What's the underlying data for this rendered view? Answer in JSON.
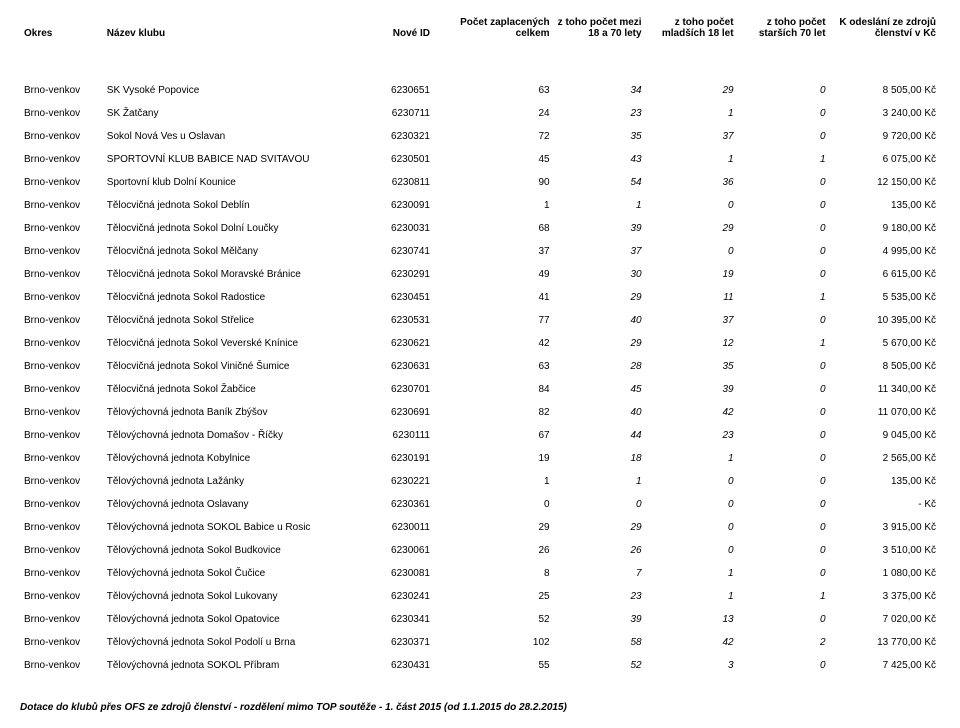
{
  "columns": {
    "okres": "Okres",
    "name": "Název klubu",
    "id": "Nové ID",
    "total": "Počet zaplacených celkem",
    "mid": "z toho počet mezi 18 a 70 lety",
    "young": "z toho počet mladších 18 let",
    "old": "z toho počet starších 70 let",
    "amount": "K odeslání ze zdrojů členství v Kč"
  },
  "rows": [
    {
      "okres": "Brno-venkov",
      "name": "SK Vysoké Popovice",
      "id": "6230651",
      "total": "63",
      "mid": "34",
      "young": "29",
      "old": "0",
      "amount": "8 505,00 Kč"
    },
    {
      "okres": "Brno-venkov",
      "name": "SK Žatčany",
      "id": "6230711",
      "total": "24",
      "mid": "23",
      "young": "1",
      "old": "0",
      "amount": "3 240,00 Kč"
    },
    {
      "okres": "Brno-venkov",
      "name": "Sokol Nová Ves u Oslavan",
      "id": "6230321",
      "total": "72",
      "mid": "35",
      "young": "37",
      "old": "0",
      "amount": "9 720,00 Kč"
    },
    {
      "okres": "Brno-venkov",
      "name": "SPORTOVNÍ KLUB BABICE NAD SVITAVOU",
      "id": "6230501",
      "total": "45",
      "mid": "43",
      "young": "1",
      "old": "1",
      "amount": "6 075,00 Kč"
    },
    {
      "okres": "Brno-venkov",
      "name": "Sportovní klub Dolní Kounice",
      "id": "6230811",
      "total": "90",
      "mid": "54",
      "young": "36",
      "old": "0",
      "amount": "12 150,00 Kč"
    },
    {
      "okres": "Brno-venkov",
      "name": "Tělocvičná jednota Sokol Deblín",
      "id": "6230091",
      "total": "1",
      "mid": "1",
      "young": "0",
      "old": "0",
      "amount": "135,00 Kč"
    },
    {
      "okres": "Brno-venkov",
      "name": "Tělocvičná jednota Sokol Dolní Loučky",
      "id": "6230031",
      "total": "68",
      "mid": "39",
      "young": "29",
      "old": "0",
      "amount": "9 180,00 Kč"
    },
    {
      "okres": "Brno-venkov",
      "name": "Tělocvičná jednota Sokol Mělčany",
      "id": "6230741",
      "total": "37",
      "mid": "37",
      "young": "0",
      "old": "0",
      "amount": "4 995,00 Kč"
    },
    {
      "okres": "Brno-venkov",
      "name": "Tělocvičná jednota Sokol Moravské Bránice",
      "id": "6230291",
      "total": "49",
      "mid": "30",
      "young": "19",
      "old": "0",
      "amount": "6 615,00 Kč"
    },
    {
      "okres": "Brno-venkov",
      "name": "Tělocvičná jednota Sokol Radostice",
      "id": "6230451",
      "total": "41",
      "mid": "29",
      "young": "11",
      "old": "1",
      "amount": "5 535,00 Kč"
    },
    {
      "okres": "Brno-venkov",
      "name": "Tělocvičná jednota Sokol Střelice",
      "id": "6230531",
      "total": "77",
      "mid": "40",
      "young": "37",
      "old": "0",
      "amount": "10 395,00 Kč"
    },
    {
      "okres": "Brno-venkov",
      "name": "Tělocvičná jednota Sokol Veverské Knínice",
      "id": "6230621",
      "total": "42",
      "mid": "29",
      "young": "12",
      "old": "1",
      "amount": "5 670,00 Kč"
    },
    {
      "okres": "Brno-venkov",
      "name": "Tělocvičná jednota Sokol Viničné Šumice",
      "id": "6230631",
      "total": "63",
      "mid": "28",
      "young": "35",
      "old": "0",
      "amount": "8 505,00 Kč"
    },
    {
      "okres": "Brno-venkov",
      "name": "Tělocvičná jednota Sokol Žabčice",
      "id": "6230701",
      "total": "84",
      "mid": "45",
      "young": "39",
      "old": "0",
      "amount": "11 340,00 Kč"
    },
    {
      "okres": "Brno-venkov",
      "name": "Tělovýchovná jednota Baník Zbýšov",
      "id": "6230691",
      "total": "82",
      "mid": "40",
      "young": "42",
      "old": "0",
      "amount": "11 070,00 Kč"
    },
    {
      "okres": "Brno-venkov",
      "name": "Tělovýchovná jednota Domašov - Říčky",
      "id": "6230111",
      "total": "67",
      "mid": "44",
      "young": "23",
      "old": "0",
      "amount": "9 045,00 Kč"
    },
    {
      "okres": "Brno-venkov",
      "name": "Tělovýchovná jednota Kobylnice",
      "id": "6230191",
      "total": "19",
      "mid": "18",
      "young": "1",
      "old": "0",
      "amount": "2 565,00 Kč"
    },
    {
      "okres": "Brno-venkov",
      "name": "Tělovýchovná jednota Lažánky",
      "id": "6230221",
      "total": "1",
      "mid": "1",
      "young": "0",
      "old": "0",
      "amount": "135,00 Kč"
    },
    {
      "okres": "Brno-venkov",
      "name": "Tělovýchovná jednota Oslavany",
      "id": "6230361",
      "total": "0",
      "mid": "0",
      "young": "0",
      "old": "0",
      "amount": "-   Kč"
    },
    {
      "okres": "Brno-venkov",
      "name": "Tělovýchovná jednota SOKOL Babice u Rosic",
      "id": "6230011",
      "total": "29",
      "mid": "29",
      "young": "0",
      "old": "0",
      "amount": "3 915,00 Kč"
    },
    {
      "okres": "Brno-venkov",
      "name": "Tělovýchovná jednota Sokol Budkovice",
      "id": "6230061",
      "total": "26",
      "mid": "26",
      "young": "0",
      "old": "0",
      "amount": "3 510,00 Kč"
    },
    {
      "okres": "Brno-venkov",
      "name": "Tělovýchovná jednota Sokol Čučice",
      "id": "6230081",
      "total": "8",
      "mid": "7",
      "young": "1",
      "old": "0",
      "amount": "1 080,00 Kč"
    },
    {
      "okres": "Brno-venkov",
      "name": "Tělovýchovná jednota Sokol Lukovany",
      "id": "6230241",
      "total": "25",
      "mid": "23",
      "young": "1",
      "old": "1",
      "amount": "3 375,00 Kč"
    },
    {
      "okres": "Brno-venkov",
      "name": "Tělovýchovná jednota Sokol Opatovice",
      "id": "6230341",
      "total": "52",
      "mid": "39",
      "young": "13",
      "old": "0",
      "amount": "7 020,00 Kč"
    },
    {
      "okres": "Brno-venkov",
      "name": "Tělovýchovná jednota Sokol Podolí u Brna",
      "id": "6230371",
      "total": "102",
      "mid": "58",
      "young": "42",
      "old": "2",
      "amount": "13 770,00 Kč"
    },
    {
      "okres": "Brno-venkov",
      "name": "Tělovýchovná jednota SOKOL Příbram",
      "id": "6230431",
      "total": "55",
      "mid": "52",
      "young": "3",
      "old": "0",
      "amount": "7 425,00 Kč"
    }
  ],
  "footer": "Dotace do klubů přes OFS ze zdrojů členství - rozdělení mimo TOP soutěže - 1. část 2015 (od 1.1.2015 do 28.2.2015)"
}
